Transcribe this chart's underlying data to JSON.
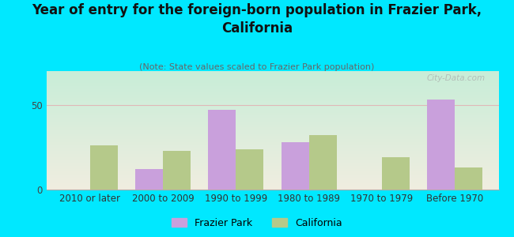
{
  "title": "Year of entry for the foreign-born population in Frazier Park,\nCalifornia",
  "subtitle": "(Note: State values scaled to Frazier Park population)",
  "categories": [
    "2010 or later",
    "2000 to 2009",
    "1990 to 1999",
    "1980 to 1989",
    "1970 to 1979",
    "Before 1970"
  ],
  "frazier_park": [
    0,
    12,
    47,
    28,
    0,
    53
  ],
  "california": [
    26,
    23,
    24,
    32,
    19,
    13
  ],
  "frazier_color": "#c9a0dc",
  "california_color": "#b5c98a",
  "background_outer": "#00e8ff",
  "bg_top_left": "#c8eed8",
  "bg_bottom_right": "#f0ede0",
  "ylim": [
    0,
    70
  ],
  "yticks": [
    0,
    50
  ],
  "bar_width": 0.38,
  "watermark": "City-Data.com",
  "title_fontsize": 12,
  "subtitle_fontsize": 8,
  "tick_fontsize": 8.5
}
